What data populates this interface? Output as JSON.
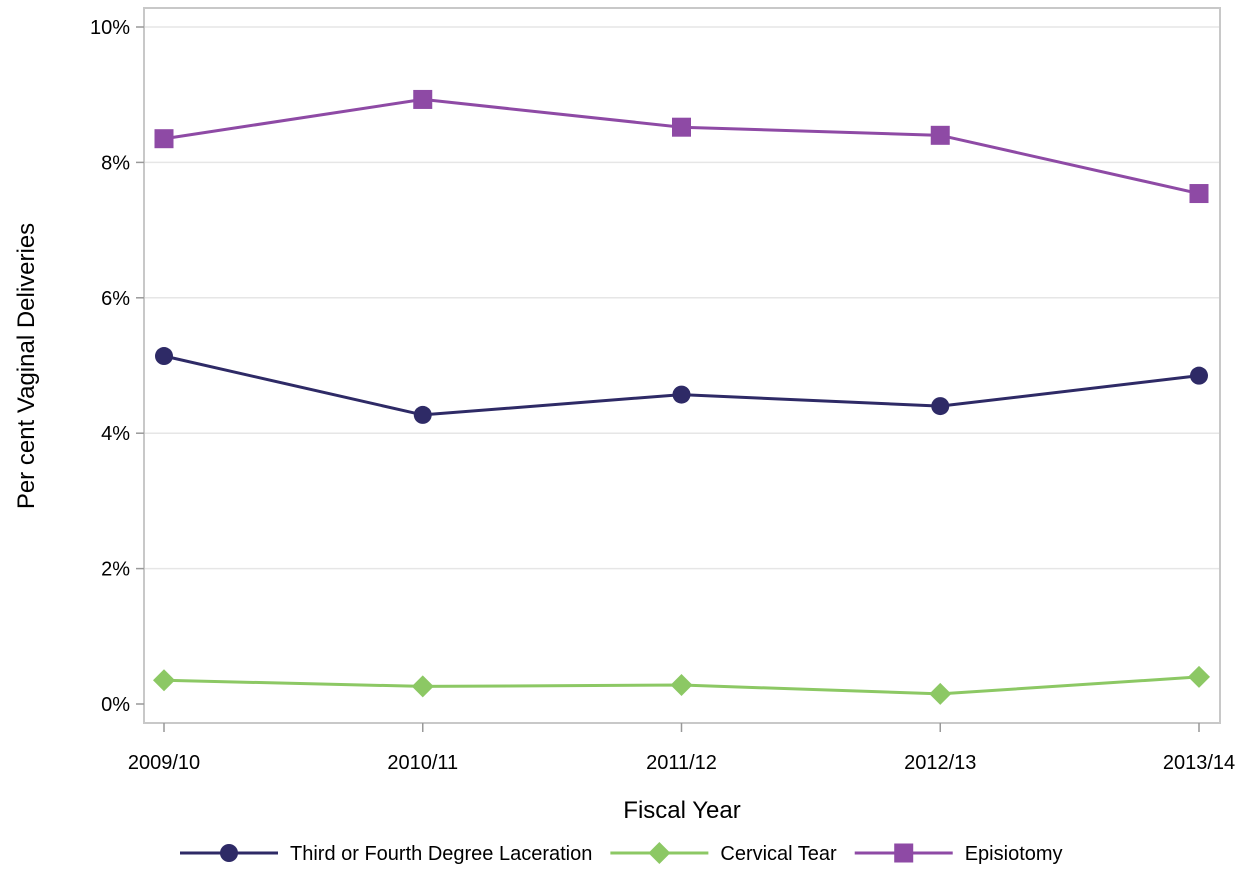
{
  "chart_data": {
    "type": "line",
    "title": "",
    "xlabel": "Fiscal Year",
    "ylabel": "Per cent Vaginal Deliveries",
    "categories": [
      "2009/10",
      "2010/11",
      "2011/12",
      "2012/13",
      "2013/14"
    ],
    "ylim": [
      0,
      10
    ],
    "yticks": [
      0,
      2,
      4,
      6,
      8,
      10
    ],
    "ytick_labels": [
      "0%",
      "2%",
      "4%",
      "6%",
      "8%",
      "10%"
    ],
    "grid": "horizontal",
    "legend_position": "bottom",
    "series": [
      {
        "name": "Third or Fourth Degree Laceration",
        "values": [
          5.14,
          4.27,
          4.57,
          4.4,
          4.85
        ],
        "color": "#2e2a66",
        "marker": "circle"
      },
      {
        "name": "Cervical Tear",
        "values": [
          0.35,
          0.26,
          0.28,
          0.15,
          0.4
        ],
        "color": "#8cc864",
        "marker": "diamond"
      },
      {
        "name": "Episiotomy",
        "values": [
          8.35,
          8.93,
          8.52,
          8.4,
          7.54
        ],
        "color": "#8e4aa5",
        "marker": "square"
      }
    ]
  }
}
